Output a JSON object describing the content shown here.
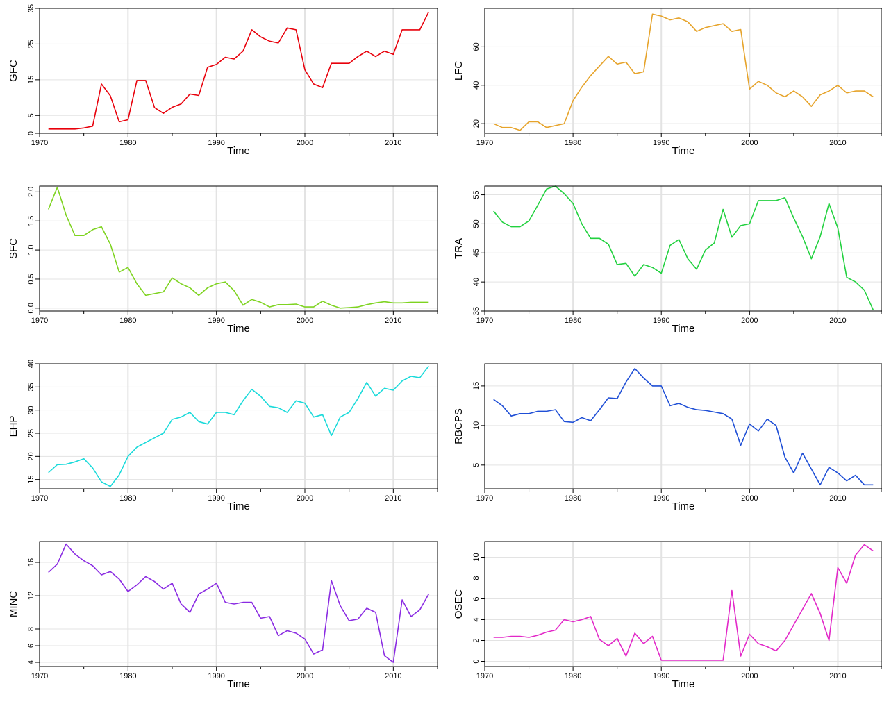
{
  "chart_data": [
    {
      "type": "line",
      "ylabel": "GFC",
      "xlabel": "Time",
      "color": "#e8000b",
      "xlim": [
        1970,
        2015
      ],
      "ylim": [
        0,
        35
      ],
      "xticks": [
        "1970",
        "1980",
        "1990",
        "2000",
        "2010"
      ],
      "yticks": [
        "0",
        "5",
        "15",
        "25",
        "35"
      ],
      "x": [
        1971,
        1972,
        1973,
        1974,
        1975,
        1976,
        1977,
        1978,
        1979,
        1980,
        1981,
        1982,
        1983,
        1984,
        1985,
        1986,
        1987,
        1988,
        1989,
        1990,
        1991,
        1992,
        1993,
        1994,
        1995,
        1996,
        1997,
        1998,
        1999,
        2000,
        2001,
        2002,
        2003,
        2004,
        2005,
        2006,
        2007,
        2008,
        2009,
        2010,
        2011,
        2012,
        2013,
        2014
      ],
      "values": [
        1.2,
        1.2,
        1.2,
        1.2,
        1.5,
        2.0,
        13.8,
        10.5,
        3.2,
        3.8,
        14.8,
        14.8,
        7.2,
        5.6,
        7.3,
        8.2,
        11.0,
        10.6,
        18.5,
        19.3,
        21.3,
        20.8,
        23.0,
        29.0,
        27.0,
        25.8,
        25.3,
        29.5,
        29.0,
        17.8,
        13.8,
        12.8,
        19.6,
        19.6,
        19.6,
        21.5,
        23.0,
        21.5,
        23.0,
        22.1,
        29.0,
        29.0,
        29.0,
        34.0
      ]
    },
    {
      "type": "line",
      "ylabel": "LFC",
      "xlabel": "Time",
      "color": "#e6a32a",
      "xlim": [
        1970,
        2015
      ],
      "ylim": [
        15,
        80
      ],
      "xticks": [
        "1970",
        "1980",
        "1990",
        "2000",
        "2010"
      ],
      "yticks": [
        "20",
        "40",
        "60"
      ],
      "x": [
        1971,
        1972,
        1973,
        1974,
        1975,
        1976,
        1977,
        1978,
        1979,
        1980,
        1981,
        1982,
        1983,
        1984,
        1985,
        1986,
        1987,
        1988,
        1989,
        1990,
        1991,
        1992,
        1993,
        1994,
        1995,
        1996,
        1997,
        1998,
        1999,
        2000,
        2001,
        2002,
        2003,
        2004,
        2005,
        2006,
        2007,
        2008,
        2009,
        2010,
        2011,
        2012,
        2013,
        2014
      ],
      "values": [
        20,
        18,
        18,
        16.5,
        21,
        21,
        18,
        19,
        20,
        32,
        39,
        45,
        50,
        55,
        51,
        52,
        46,
        47,
        77,
        76,
        74,
        75,
        73,
        68,
        70,
        71,
        72,
        68,
        69,
        38,
        42,
        40,
        36,
        34,
        37,
        34,
        29,
        35,
        37,
        40,
        36,
        37,
        37,
        34
      ]
    },
    {
      "type": "line",
      "ylabel": "SFC",
      "xlabel": "Time",
      "color": "#7ed320",
      "xlim": [
        1970,
        2015
      ],
      "ylim": [
        -0.05,
        2.1
      ],
      "xticks": [
        "1970",
        "1980",
        "1990",
        "2000",
        "2010"
      ],
      "yticks": [
        "0.0",
        "0.5",
        "1.0",
        "1.5",
        "2.0"
      ],
      "x": [
        1971,
        1972,
        1973,
        1974,
        1975,
        1976,
        1977,
        1978,
        1979,
        1980,
        1981,
        1982,
        1983,
        1984,
        1985,
        1986,
        1987,
        1988,
        1989,
        1990,
        1991,
        1992,
        1993,
        1994,
        1995,
        1996,
        1997,
        1998,
        1999,
        2000,
        2001,
        2002,
        2003,
        2004,
        2005,
        2006,
        2007,
        2008,
        2009,
        2010,
        2011,
        2012,
        2013,
        2014
      ],
      "values": [
        1.7,
        2.08,
        1.6,
        1.25,
        1.25,
        1.35,
        1.4,
        1.1,
        0.62,
        0.7,
        0.42,
        0.22,
        0.25,
        0.28,
        0.52,
        0.42,
        0.35,
        0.22,
        0.35,
        0.42,
        0.45,
        0.3,
        0.05,
        0.15,
        0.1,
        0.02,
        0.06,
        0.06,
        0.07,
        0.02,
        0.02,
        0.12,
        0.05,
        0.0,
        0.01,
        0.02,
        0.06,
        0.09,
        0.11,
        0.09,
        0.09,
        0.1,
        0.1,
        0.1
      ]
    },
    {
      "type": "line",
      "ylabel": "TRA",
      "xlabel": "Time",
      "color": "#22d13f",
      "xlim": [
        1970,
        2015
      ],
      "ylim": [
        35,
        56.5
      ],
      "xticks": [
        "1970",
        "1980",
        "1990",
        "2000",
        "2010"
      ],
      "yticks": [
        "35",
        "40",
        "45",
        "50",
        "55"
      ],
      "x": [
        1971,
        1972,
        1973,
        1974,
        1975,
        1976,
        1977,
        1978,
        1979,
        1980,
        1981,
        1982,
        1983,
        1984,
        1985,
        1986,
        1987,
        1988,
        1989,
        1990,
        1991,
        1992,
        1993,
        1994,
        1995,
        1996,
        1997,
        1998,
        1999,
        2000,
        2001,
        2002,
        2003,
        2004,
        2005,
        2006,
        2007,
        2008,
        2009,
        2010,
        2011,
        2012,
        2013,
        2014
      ],
      "values": [
        52.2,
        50.3,
        49.5,
        49.5,
        50.5,
        53.2,
        56.0,
        56.5,
        55.2,
        53.5,
        50.0,
        47.5,
        47.5,
        46.5,
        43.0,
        43.2,
        41.0,
        43.0,
        42.5,
        41.5,
        46.3,
        47.3,
        44.0,
        42.2,
        45.5,
        46.7,
        52.5,
        47.7,
        49.7,
        50.0,
        54.0,
        54.0,
        54.0,
        54.5,
        51.0,
        47.8,
        44.0,
        47.8,
        53.5,
        49.3,
        40.8,
        40.0,
        38.6,
        35.2
      ]
    },
    {
      "type": "line",
      "ylabel": "EHP",
      "xlabel": "Time",
      "color": "#19dada",
      "xlim": [
        1970,
        2015
      ],
      "ylim": [
        13,
        40
      ],
      "xticks": [
        "1970",
        "1980",
        "1990",
        "2000",
        "2010"
      ],
      "yticks": [
        "15",
        "20",
        "25",
        "30",
        "35",
        "40"
      ],
      "x": [
        1971,
        1972,
        1973,
        1974,
        1975,
        1976,
        1977,
        1978,
        1979,
        1980,
        1981,
        1982,
        1983,
        1984,
        1985,
        1986,
        1987,
        1988,
        1989,
        1990,
        1991,
        1992,
        1993,
        1994,
        1995,
        1996,
        1997,
        1998,
        1999,
        2000,
        2001,
        2002,
        2003,
        2004,
        2005,
        2006,
        2007,
        2008,
        2009,
        2010,
        2011,
        2012,
        2013,
        2014
      ],
      "values": [
        16.5,
        18.2,
        18.3,
        18.8,
        19.5,
        17.5,
        14.5,
        13.5,
        16.0,
        20.0,
        22.0,
        23.0,
        24.0,
        25.0,
        28.0,
        28.5,
        29.5,
        27.5,
        27.0,
        29.5,
        29.5,
        29.0,
        32.0,
        34.5,
        33.0,
        30.8,
        30.5,
        29.5,
        32.0,
        31.5,
        28.5,
        29.0,
        24.5,
        28.5,
        29.5,
        32.5,
        36.0,
        33.0,
        34.7,
        34.3,
        36.3,
        37.3,
        37.0,
        39.5
      ]
    },
    {
      "type": "line",
      "ylabel": "RBCPS",
      "xlabel": "Time",
      "color": "#1f4fd6",
      "xlim": [
        1970,
        2015
      ],
      "ylim": [
        2,
        17.8
      ],
      "xticks": [
        "1970",
        "1980",
        "1990",
        "2000",
        "2010"
      ],
      "yticks": [
        "5",
        "10",
        "15"
      ],
      "x": [
        1971,
        1972,
        1973,
        1974,
        1975,
        1976,
        1977,
        1978,
        1979,
        1980,
        1981,
        1982,
        1983,
        1984,
        1985,
        1986,
        1987,
        1988,
        1989,
        1990,
        1991,
        1992,
        1993,
        1994,
        1995,
        1996,
        1997,
        1998,
        1999,
        2000,
        2001,
        2002,
        2003,
        2004,
        2005,
        2006,
        2007,
        2008,
        2009,
        2010,
        2011,
        2012,
        2013,
        2014
      ],
      "values": [
        13.3,
        12.5,
        11.2,
        11.5,
        11.5,
        11.8,
        11.8,
        12.0,
        10.5,
        10.4,
        11.0,
        10.6,
        12.0,
        13.5,
        13.4,
        15.5,
        17.2,
        16.0,
        15.0,
        15.0,
        12.5,
        12.8,
        12.3,
        12.0,
        11.9,
        11.7,
        11.5,
        10.8,
        7.5,
        10.2,
        9.3,
        10.8,
        10.0,
        6.0,
        4.0,
        6.5,
        4.5,
        2.5,
        4.7,
        4.0,
        3.0,
        3.7,
        2.5,
        2.5
      ]
    },
    {
      "type": "line",
      "ylabel": "MINC",
      "xlabel": "Time",
      "color": "#8a2be2",
      "xlim": [
        1970,
        2015
      ],
      "ylim": [
        3.5,
        18.5
      ],
      "xticks": [
        "1970",
        "1980",
        "1990",
        "2000",
        "2010"
      ],
      "yticks": [
        "4",
        "6",
        "8",
        "12",
        "16"
      ],
      "x": [
        1971,
        1972,
        1973,
        1974,
        1975,
        1976,
        1977,
        1978,
        1979,
        1980,
        1981,
        1982,
        1983,
        1984,
        1985,
        1986,
        1987,
        1988,
        1989,
        1990,
        1991,
        1992,
        1993,
        1994,
        1995,
        1996,
        1997,
        1998,
        1999,
        2000,
        2001,
        2002,
        2003,
        2004,
        2005,
        2006,
        2007,
        2008,
        2009,
        2010,
        2011,
        2012,
        2013,
        2014
      ],
      "values": [
        14.8,
        15.8,
        18.2,
        17.0,
        16.2,
        15.6,
        14.5,
        14.9,
        14.0,
        12.5,
        13.3,
        14.3,
        13.7,
        12.8,
        13.5,
        11.0,
        10.0,
        12.2,
        12.8,
        13.5,
        11.2,
        11.0,
        11.2,
        11.2,
        9.3,
        9.5,
        7.2,
        7.8,
        7.5,
        6.8,
        5.0,
        5.5,
        13.8,
        10.8,
        9.0,
        9.2,
        10.5,
        10.0,
        4.8,
        4.0,
        11.5,
        9.5,
        10.3,
        12.2
      ]
    },
    {
      "type": "line",
      "ylabel": "OSEC",
      "xlabel": "Time",
      "color": "#e228c8",
      "xlim": [
        1970,
        2015
      ],
      "ylim": [
        -0.5,
        11.5
      ],
      "xticks": [
        "1970",
        "1980",
        "1990",
        "2000",
        "2010"
      ],
      "yticks": [
        "0",
        "2",
        "4",
        "6",
        "8",
        "10"
      ],
      "x": [
        1971,
        1972,
        1973,
        1974,
        1975,
        1976,
        1977,
        1978,
        1979,
        1980,
        1981,
        1982,
        1983,
        1984,
        1985,
        1986,
        1987,
        1988,
        1989,
        1990,
        1991,
        1992,
        1993,
        1994,
        1995,
        1996,
        1997,
        1998,
        1999,
        2000,
        2001,
        2002,
        2003,
        2004,
        2005,
        2006,
        2007,
        2008,
        2009,
        2010,
        2011,
        2012,
        2013,
        2014
      ],
      "values": [
        2.3,
        2.3,
        2.4,
        2.4,
        2.3,
        2.5,
        2.8,
        3.0,
        4.0,
        3.8,
        4.0,
        4.3,
        2.1,
        1.5,
        2.2,
        0.5,
        2.7,
        1.7,
        2.4,
        0.1,
        0.1,
        0.1,
        0.1,
        0.1,
        0.1,
        0.1,
        0.1,
        6.8,
        0.5,
        2.6,
        1.7,
        1.4,
        1.0,
        2.0,
        3.5,
        5.0,
        6.5,
        4.6,
        2.0,
        9.0,
        7.5,
        10.2,
        11.2,
        10.6
      ]
    }
  ]
}
